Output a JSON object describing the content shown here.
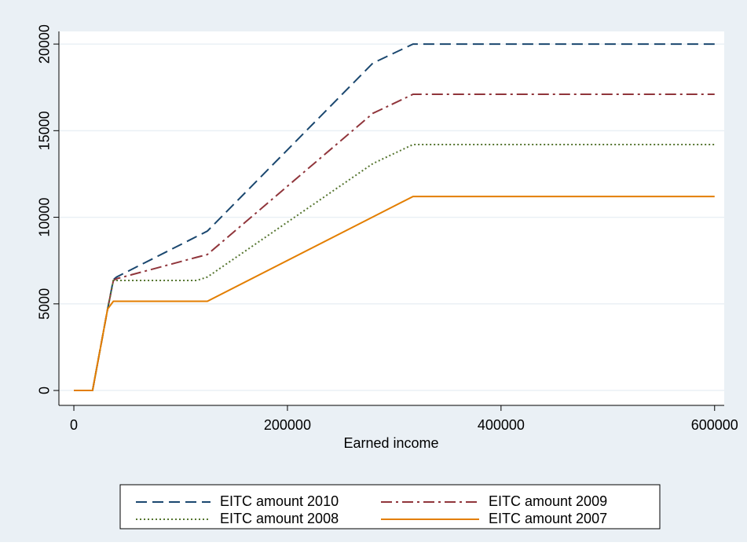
{
  "chart_data": {
    "type": "line",
    "x_label": "Earned income",
    "x": [
      0,
      17500,
      31600,
      37000,
      40000,
      115000,
      125000,
      280000,
      317600,
      600000
    ],
    "series": [
      {
        "name": "EITC amount 2010",
        "color": "#1a476f",
        "linestyle": "dash",
        "values": [
          0,
          0,
          4700,
          6400,
          6550,
          8890,
          9200,
          18900,
          20000,
          20000
        ]
      },
      {
        "name": "EITC amount 2009",
        "color": "#90353b",
        "linestyle": "dashdot",
        "values": [
          0,
          0,
          4700,
          6350,
          6450,
          7690,
          7850,
          16000,
          17100,
          17100
        ]
      },
      {
        "name": "EITC amount 2008",
        "color": "#55752f",
        "linestyle": "dot",
        "values": [
          0,
          0,
          4700,
          6350,
          6350,
          6350,
          6550,
          13100,
          14200,
          14200
        ]
      },
      {
        "name": "EITC amount 2007",
        "color": "#e37e00",
        "linestyle": "solid",
        "values": [
          0,
          0,
          4700,
          5150,
          5150,
          5150,
          5150,
          10020,
          11200,
          11200
        ]
      }
    ],
    "xlim": [
      -14000,
      609000
    ],
    "xticks": [
      0,
      200000,
      400000,
      600000
    ],
    "ylim": [
      -860,
      20730
    ],
    "yticks": [
      0,
      5000,
      10000,
      15000,
      20000
    ],
    "grid": true,
    "legend_position": "bottom"
  }
}
